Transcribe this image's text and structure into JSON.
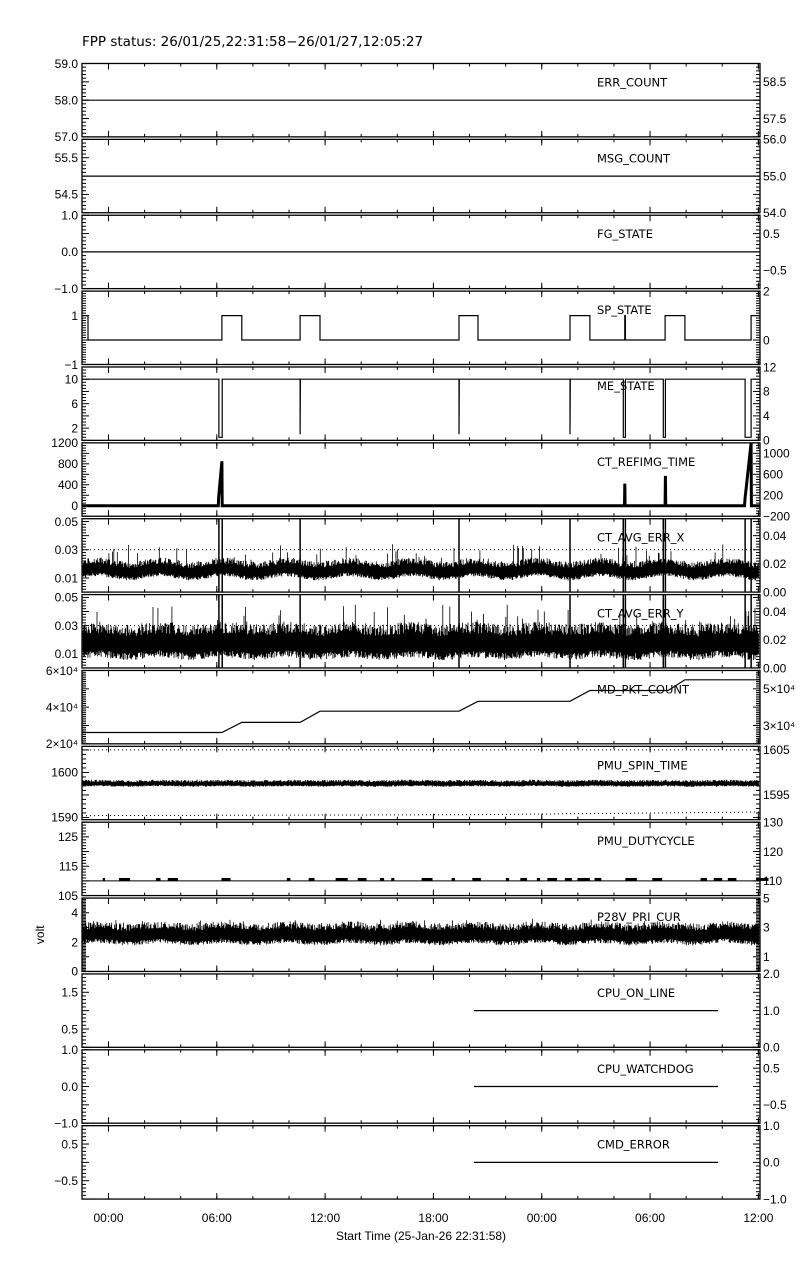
{
  "chart_data": {
    "type": "line",
    "title": "FPP status: 26/01/25,22:31:58−26/01/27,12:05:27",
    "xlabel": "Start Time (25-Jan-26 22:31:58)",
    "x_range": [
      "2026-01-25 22:31:58",
      "2026-01-27 12:05:27"
    ],
    "x_major_ticks": [
      {
        "t": "2026-01-26 00:00",
        "label": "00:00"
      },
      {
        "t": "2026-01-26 06:00",
        "label": "06:00"
      },
      {
        "t": "2026-01-26 12:00",
        "label": "12:00"
      },
      {
        "t": "2026-01-26 18:00",
        "label": "18:00"
      },
      {
        "t": "2026-01-27 00:00",
        "label": "00:00"
      },
      {
        "t": "2026-01-27 06:00",
        "label": "06:00"
      },
      {
        "t": "2026-01-27 12:00",
        "label": "12:00"
      }
    ],
    "x_minor_step_hours": 2,
    "grid": false,
    "colors": {
      "line": "#000000",
      "background": "#ffffff"
    },
    "panels": [
      {
        "label": "ERR_COUNT",
        "ylim": [
          57,
          59
        ],
        "yticks": [
          "57.0",
          "57.5",
          "58.0",
          "58.5",
          "59.0"
        ],
        "minor": 5,
        "series": [
          {
            "kind": "line",
            "points": [
              [
                "2026-01-25 22:31:58",
                58
              ],
              [
                "2026-01-27 12:05:27",
                58
              ]
            ]
          }
        ]
      },
      {
        "label": "MSG_COUNT",
        "ylim": [
          54,
          56
        ],
        "yticks": [
          "54.0",
          "54.5",
          "55.0",
          "55.5",
          "56.0"
        ],
        "minor": 5,
        "series": [
          {
            "kind": "line",
            "points": [
              [
                "2026-01-25 22:31:58",
                55
              ],
              [
                "2026-01-27 12:05:27",
                55
              ]
            ]
          }
        ]
      },
      {
        "label": "FG_STATE",
        "ylim": [
          -1,
          1
        ],
        "yticks": [
          "−1.0",
          "−0.5",
          "0.0",
          "0.5",
          "1.0"
        ],
        "minor": 5,
        "series": [
          {
            "kind": "line",
            "points": [
              [
                "2026-01-25 22:31:58",
                0
              ],
              [
                "2026-01-27 12:05:27",
                0
              ]
            ]
          }
        ]
      },
      {
        "label": "SP_STATE",
        "ylim": [
          -1,
          2
        ],
        "yticks": [
          "−1",
          "0",
          "1",
          "2"
        ],
        "minor": 10,
        "series": [
          {
            "kind": "line",
            "points": [
              [
                "2026-01-25 22:31:58",
                1
              ],
              [
                "2026-01-25 22:52",
                1
              ],
              [
                "2026-01-25 22:52",
                0
              ],
              [
                "2026-01-26 06:17",
                0
              ],
              [
                "2026-01-26 06:17",
                1
              ],
              [
                "2026-01-26 07:23",
                1
              ],
              [
                "2026-01-26 07:23",
                0
              ],
              [
                "2026-01-26 10:37",
                0
              ],
              [
                "2026-01-26 10:37",
                1
              ],
              [
                "2026-01-26 11:43",
                1
              ],
              [
                "2026-01-26 11:43",
                0
              ],
              [
                "2026-01-26 19:25",
                0
              ],
              [
                "2026-01-26 19:25",
                1
              ],
              [
                "2026-01-26 20:28",
                1
              ],
              [
                "2026-01-26 20:28",
                0
              ],
              [
                "2026-01-27 01:34",
                0
              ],
              [
                "2026-01-27 01:34",
                1
              ],
              [
                "2026-01-27 02:40",
                1
              ],
              [
                "2026-01-27 02:40",
                0
              ],
              [
                "2026-01-27 04:36",
                0
              ],
              [
                "2026-01-27 04:36",
                1
              ],
              [
                "2026-01-27 04:38",
                1
              ],
              [
                "2026-01-27 04:38",
                0
              ],
              [
                "2026-01-27 06:50",
                0
              ],
              [
                "2026-01-27 06:50",
                1
              ],
              [
                "2026-01-27 07:56",
                1
              ],
              [
                "2026-01-27 07:56",
                0
              ],
              [
                "2026-01-27 11:36",
                0
              ],
              [
                "2026-01-27 11:36",
                1
              ],
              [
                "2026-01-27 12:05:27",
                1
              ]
            ]
          }
        ]
      },
      {
        "label": "ME_STATE",
        "ylim": [
          0,
          12
        ],
        "yticks": [
          "0",
          "2",
          "4",
          "6",
          "8",
          "10",
          "12"
        ],
        "minor": 4,
        "series": [
          {
            "kind": "line",
            "points": [
              [
                "2026-01-25 22:31:58",
                10
              ],
              [
                "2026-01-26 06:07",
                10
              ],
              [
                "2026-01-26 06:07",
                0.5
              ],
              [
                "2026-01-26 06:18",
                0.5
              ],
              [
                "2026-01-26 06:18",
                10
              ],
              [
                "2026-01-26 10:37",
                10
              ],
              [
                "2026-01-26 10:37",
                1
              ],
              [
                "2026-01-26 10:38",
                10
              ],
              [
                "2026-01-26 19:25",
                10
              ],
              [
                "2026-01-26 19:25",
                1
              ],
              [
                "2026-01-26 19:26",
                10
              ],
              [
                "2026-01-27 01:34",
                10
              ],
              [
                "2026-01-27 01:34",
                1
              ],
              [
                "2026-01-27 01:35",
                10
              ],
              [
                "2026-01-27 04:31",
                10
              ],
              [
                "2026-01-27 04:31",
                0.5
              ],
              [
                "2026-01-27 04:38",
                0.5
              ],
              [
                "2026-01-27 04:38",
                10
              ],
              [
                "2026-01-27 06:44",
                10
              ],
              [
                "2026-01-27 06:44",
                0.5
              ],
              [
                "2026-01-27 06:51",
                0.5
              ],
              [
                "2026-01-27 06:51",
                10
              ],
              [
                "2026-01-27 11:16",
                10
              ],
              [
                "2026-01-27 11:16",
                0.5
              ],
              [
                "2026-01-27 11:36",
                0.5
              ],
              [
                "2026-01-27 11:36",
                10
              ],
              [
                "2026-01-27 12:05:27",
                10
              ]
            ]
          }
        ]
      },
      {
        "label": "CT_REFIMG_TIME",
        "ylim": [
          -200,
          1200
        ],
        "yticks": [
          "−200",
          "0",
          "200",
          "400",
          "600",
          "800",
          "1000",
          "1200"
        ],
        "minor": 4,
        "series": [
          {
            "kind": "line",
            "thick": true,
            "points": [
              [
                "2026-01-25 22:31:58",
                0
              ],
              [
                "2026-01-26 06:05",
                0
              ],
              [
                "2026-01-26 06:06",
                150
              ],
              [
                "2026-01-26 06:17",
                850
              ],
              [
                "2026-01-26 06:18",
                0
              ],
              [
                "2026-01-27 04:35",
                0
              ],
              [
                "2026-01-27 04:36",
                420
              ],
              [
                "2026-01-27 04:37",
                0
              ],
              [
                "2026-01-27 06:50",
                0
              ],
              [
                "2026-01-27 06:51",
                570
              ],
              [
                "2026-01-27 06:52",
                0
              ],
              [
                "2026-01-27 11:14",
                0
              ],
              [
                "2026-01-27 11:16",
                150
              ],
              [
                "2026-01-27 11:36",
                1200
              ],
              [
                "2026-01-27 11:37",
                0
              ],
              [
                "2026-01-27 12:05:27",
                0
              ]
            ]
          }
        ]
      },
      {
        "label": "CT_AVG_ERR_X",
        "ylim": [
          0,
          0.052
        ],
        "yticks": [
          "0.00",
          "0.01",
          "0.02",
          "0.03",
          "0.04",
          "0.05"
        ],
        "minor": 5,
        "series": [
          {
            "kind": "noise",
            "low": 0.011,
            "high": 0.02,
            "spike": 0.034,
            "oscillation": 0.0015,
            "seed": 7
          },
          {
            "kind": "ref",
            "value": 0.03
          },
          {
            "kind": "marks",
            "times": [
              "2026-01-26 06:07",
              "2026-01-26 06:18",
              "2026-01-26 10:37",
              "2026-01-26 19:25",
              "2026-01-27 01:34",
              "2026-01-27 04:31",
              "2026-01-27 04:38",
              "2026-01-27 06:44",
              "2026-01-27 06:51",
              "2026-01-27 11:16",
              "2026-01-27 11:36"
            ]
          }
        ]
      },
      {
        "label": "CT_AVG_ERR_Y",
        "ylim": [
          0,
          0.052
        ],
        "yticks": [
          "0.00",
          "0.01",
          "0.02",
          "0.03",
          "0.04",
          "0.05"
        ],
        "minor": 5,
        "series": [
          {
            "kind": "noise",
            "low": 0.009,
            "high": 0.026,
            "spike": 0.045,
            "oscillation": 0.001,
            "seed": 11
          },
          {
            "kind": "ref",
            "value": 0.03
          },
          {
            "kind": "marks",
            "times": [
              "2026-01-26 06:07",
              "2026-01-26 06:18",
              "2026-01-26 10:37",
              "2026-01-26 19:25",
              "2026-01-27 01:34",
              "2026-01-27 04:31",
              "2026-01-27 04:38",
              "2026-01-27 06:44",
              "2026-01-27 06:51",
              "2026-01-27 11:16",
              "2026-01-27 11:36"
            ]
          }
        ]
      },
      {
        "label": "MD_PKT_COUNT",
        "ylim": [
          20000,
          60000
        ],
        "yticks": [
          "2×10⁴",
          "3×10⁴",
          "4×10⁴",
          "5×10⁴",
          "6×10⁴"
        ],
        "minor": 10,
        "series": [
          {
            "kind": "line",
            "points": [
              [
                "2026-01-25 22:31:58",
                26200
              ],
              [
                "2026-01-26 06:17",
                26200
              ],
              [
                "2026-01-26 07:23",
                31700
              ],
              [
                "2026-01-26 10:37",
                31700
              ],
              [
                "2026-01-26 11:43",
                37800
              ],
              [
                "2026-01-26 19:25",
                37800
              ],
              [
                "2026-01-26 20:28",
                43200
              ],
              [
                "2026-01-27 01:34",
                43200
              ],
              [
                "2026-01-27 02:40",
                49100
              ],
              [
                "2026-01-27 07:00",
                49100
              ],
              [
                "2026-01-27 07:56",
                54900
              ],
              [
                "2026-01-27 12:05:27",
                54900
              ]
            ]
          }
        ]
      },
      {
        "label": "PMU_SPIN_TIME",
        "ylim": [
          1589.5,
          1605.8
        ],
        "yticks": [
          "1590",
          "1595",
          "1600",
          "1605"
        ],
        "minor": 5,
        "series": [
          {
            "kind": "noise",
            "low": 1597.0,
            "high": 1598.0,
            "spike": 1598.4,
            "oscillation": 0.05,
            "seed": 3
          },
          {
            "kind": "ref",
            "value": 1605
          },
          {
            "kind": "ref_line",
            "points": [
              [
                "2026-01-25 22:31:58",
                1590.4
              ],
              [
                "2026-01-26 20:00",
                1590.6
              ],
              [
                "2026-01-27 12:05:27",
                1591.2
              ]
            ]
          }
        ]
      },
      {
        "label": "PMU_DUTYCYCLE",
        "ylim": [
          105,
          130
        ],
        "yticks": [
          "105",
          "110",
          "115",
          "120",
          "125",
          "130"
        ],
        "minor": 5,
        "series": [
          {
            "kind": "dashes",
            "value": 110,
            "jitter": 111,
            "seed": 5
          }
        ]
      },
      {
        "label": "P28V_PRI_CUR",
        "ylabel": "volt",
        "ylim": [
          0,
          5
        ],
        "yticks": [
          "0",
          "1",
          "2",
          "3",
          "4",
          "5"
        ],
        "minor": 10,
        "series": [
          {
            "kind": "noise",
            "low": 2.0,
            "high": 3.0,
            "spike": 3.6,
            "oscillation": 0.08,
            "seed": 19
          }
        ]
      },
      {
        "label": "CPU_ON_LINE",
        "ylim": [
          0,
          2
        ],
        "yticks": [
          "0.0",
          "0.5",
          "1.0",
          "1.5",
          "2.0"
        ],
        "minor": 5,
        "series": [
          {
            "kind": "line",
            "points": [
              [
                "2026-01-26 20:15",
                1
              ],
              [
                "2026-01-27 09:46",
                1
              ]
            ]
          }
        ]
      },
      {
        "label": "CPU_WATCHDOG",
        "ylim": [
          -1,
          1
        ],
        "yticks": [
          "−1.0",
          "−0.5",
          "0.0",
          "0.5",
          "1.0"
        ],
        "minor": 5,
        "series": [
          {
            "kind": "line",
            "points": [
              [
                "2026-01-26 20:15",
                0
              ],
              [
                "2026-01-27 09:46",
                0
              ]
            ]
          }
        ]
      },
      {
        "label": "CMD_ERROR",
        "ylim": [
          -1,
          1
        ],
        "yticks": [
          "−1.0",
          "−0.5",
          "0.0",
          "0.5",
          "1.0"
        ],
        "minor": 5,
        "series": [
          {
            "kind": "line",
            "points": [
              [
                "2026-01-26 20:15",
                0
              ],
              [
                "2026-01-27 09:46",
                0
              ]
            ]
          }
        ]
      }
    ]
  }
}
